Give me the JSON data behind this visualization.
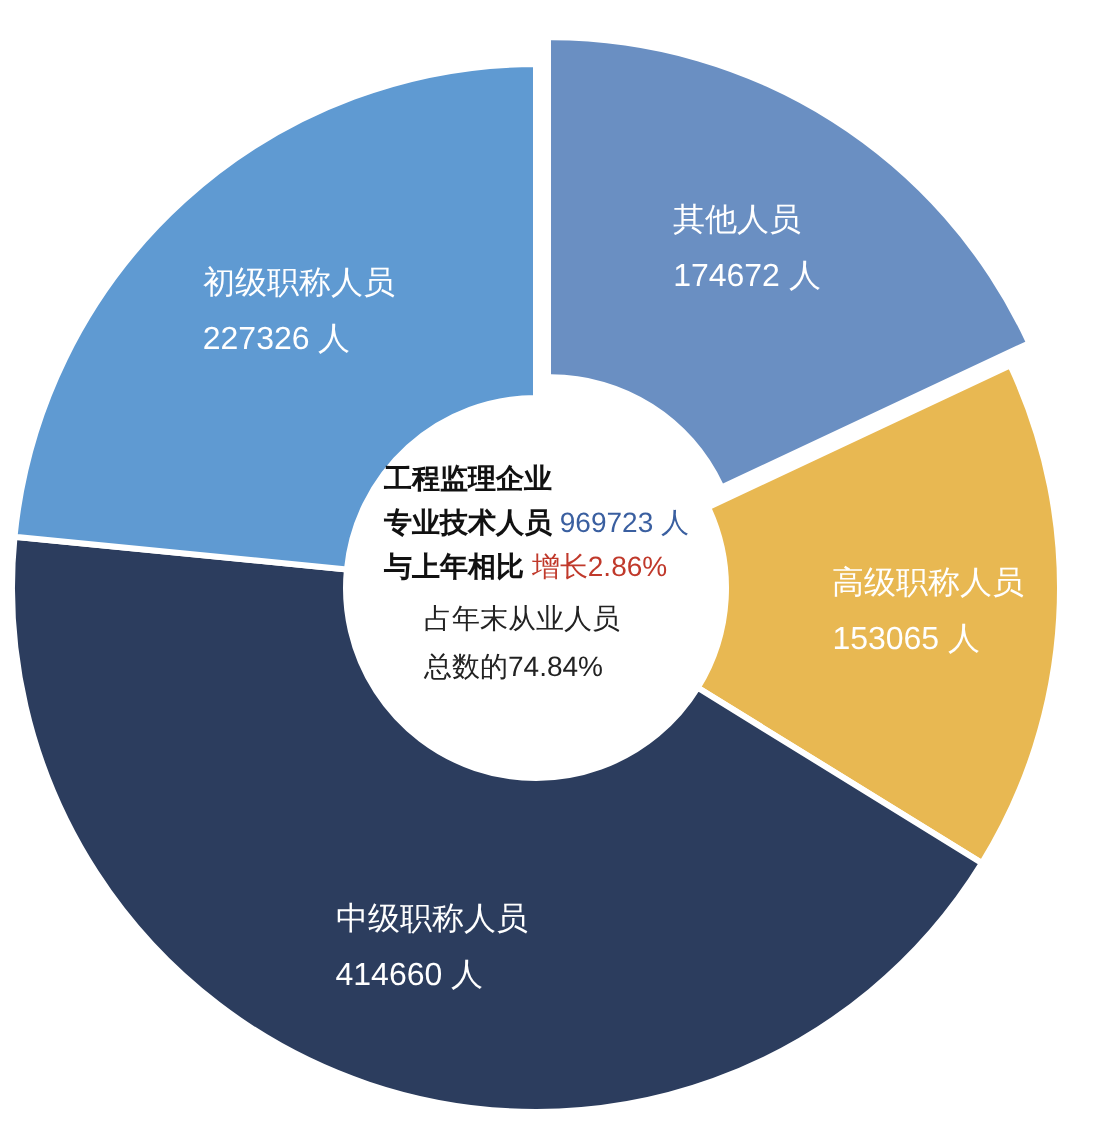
{
  "chart_data": {
    "type": "donut",
    "categories": [
      "其他人员",
      "高级职称人员",
      "中级职称人员",
      "初级职称人员"
    ],
    "values": [
      174672,
      153065,
      414660,
      227326
    ],
    "colors": [
      "#6a8fc2",
      "#e8b852",
      "#2c3d5e",
      "#5f9ad2"
    ],
    "value_labels": [
      "174672 人",
      "153065 人",
      "414660 人",
      "227326 人"
    ],
    "annotations": [
      "工程监理企业",
      "专业技术人员",
      "969723 人",
      "与上年相比",
      "增长2.86%",
      "占年末从业人员",
      "总数的74.84%"
    ]
  }
}
